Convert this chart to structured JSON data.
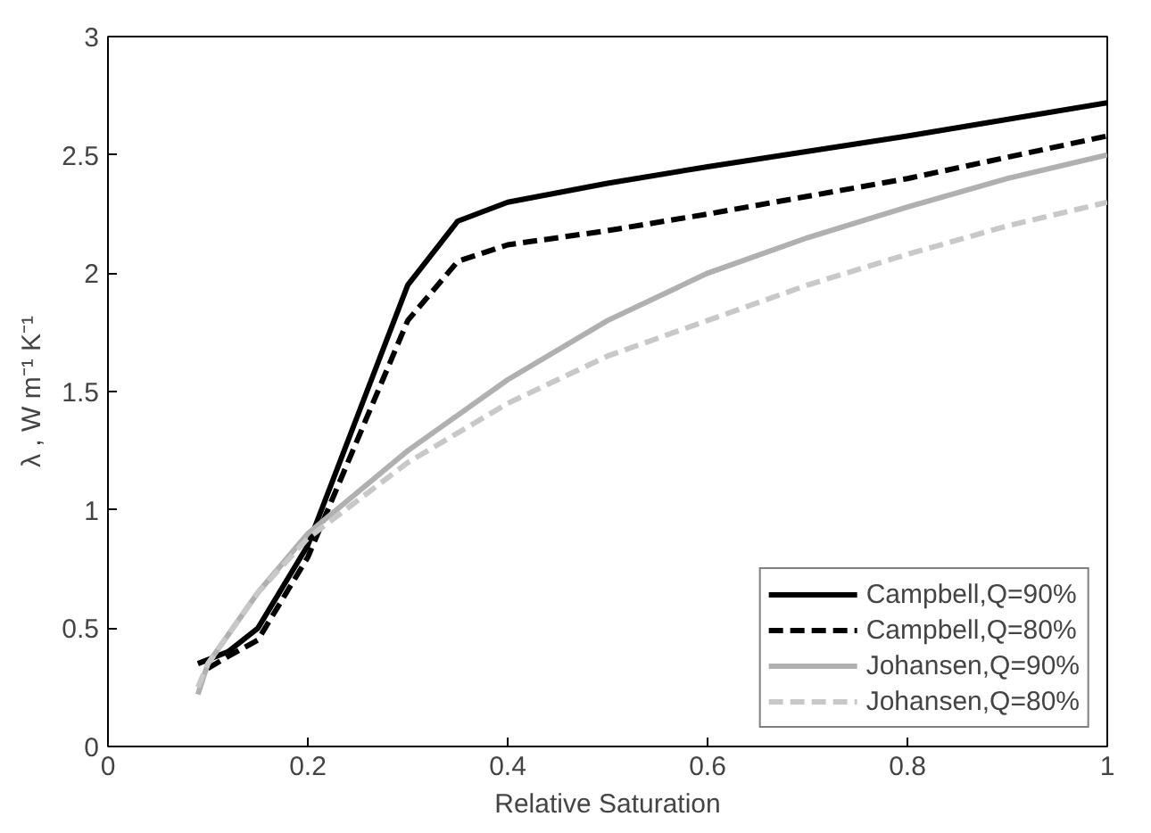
{
  "chart_data": {
    "type": "line",
    "xlabel": "Relative Saturation",
    "ylabel": "λ , W m⁻¹ K⁻¹",
    "xlim": [
      0,
      1
    ],
    "ylim": [
      0,
      3
    ],
    "xticks": [
      0,
      0.2,
      0.4,
      0.6,
      0.8,
      1
    ],
    "yticks": [
      0,
      0.5,
      1,
      1.5,
      2,
      2.5,
      3
    ],
    "grid": false,
    "legend": "bottom right",
    "series": [
      {
        "name": "Campbell,Q=90%",
        "color": "#000000",
        "line_style": "solid",
        "x": [
          0.09,
          0.12,
          0.15,
          0.2,
          0.25,
          0.3,
          0.35,
          0.4,
          0.5,
          0.6,
          0.8,
          1.0
        ],
        "values": [
          0.35,
          0.4,
          0.5,
          0.85,
          1.4,
          1.95,
          2.22,
          2.3,
          2.38,
          2.45,
          2.58,
          2.72
        ]
      },
      {
        "name": "Campbell,Q=80%",
        "color": "#000000",
        "line_style": "dashed",
        "x": [
          0.1,
          0.12,
          0.15,
          0.2,
          0.25,
          0.3,
          0.35,
          0.4,
          0.5,
          0.6,
          0.8,
          1.0
        ],
        "values": [
          0.33,
          0.38,
          0.45,
          0.8,
          1.3,
          1.8,
          2.05,
          2.12,
          2.18,
          2.25,
          2.4,
          2.58
        ]
      },
      {
        "name": "Johansen,Q=90%",
        "color": "#b0b0b0",
        "line_style": "solid",
        "x": [
          0.09,
          0.1,
          0.15,
          0.2,
          0.3,
          0.4,
          0.5,
          0.6,
          0.7,
          0.8,
          0.9,
          1.0
        ],
        "values": [
          0.22,
          0.35,
          0.65,
          0.9,
          1.25,
          1.55,
          1.8,
          2.0,
          2.15,
          2.28,
          2.4,
          2.5
        ]
      },
      {
        "name": "Johansen,Q=80%",
        "color": "#c8c8c8",
        "line_style": "dashed",
        "x": [
          0.09,
          0.1,
          0.15,
          0.2,
          0.3,
          0.4,
          0.5,
          0.6,
          0.7,
          0.8,
          0.9,
          1.0
        ],
        "values": [
          0.25,
          0.35,
          0.65,
          0.88,
          1.2,
          1.45,
          1.65,
          1.8,
          1.95,
          2.08,
          2.2,
          2.3
        ]
      }
    ]
  }
}
